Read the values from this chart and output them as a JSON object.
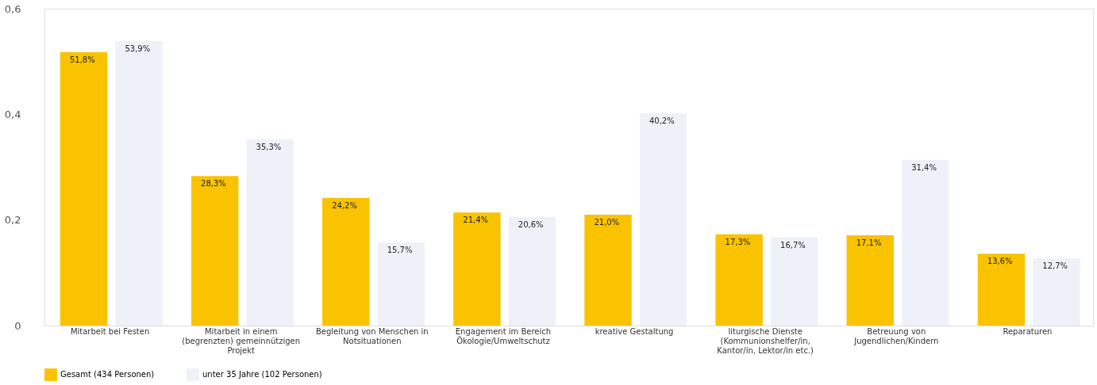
{
  "chart_data": {
    "type": "bar",
    "categories": [
      "Mitarbeit bei Festen",
      "Mitarbeit in einem (begrenzten) gemeinnützigen Projekt",
      "Begleitung von Menschen in Notsituationen",
      "Engagement im Bereich Ökologie/Umweltschutz",
      "kreative Gestaltung",
      "liturgische Dienste (Kommunionshelfer/in, Kantor/in, Lektor/in etc.)",
      "Betreuung von Jugendlichen/Kindern",
      "Reparaturen"
    ],
    "series": [
      {
        "name": "Gesamt (434 Personen)",
        "color": "#f9c300",
        "values": [
          0.518,
          0.283,
          0.242,
          0.214,
          0.21,
          0.173,
          0.171,
          0.136
        ],
        "value_labels": [
          "51,8%",
          "28,3%",
          "24,2%",
          "21,4%",
          "21,0%",
          "17,3%",
          "17,1%",
          "13,6%"
        ]
      },
      {
        "name": "unter 35 Jahre (102 Personen)",
        "color": "#eef2f8",
        "values": [
          0.539,
          0.353,
          0.157,
          0.206,
          0.402,
          0.167,
          0.314,
          0.127
        ],
        "value_labels": [
          "53,9%",
          "35,3%",
          "15,7%",
          "20,6%",
          "40,2%",
          "16,7%",
          "31,4%",
          "12,7%"
        ]
      }
    ],
    "ylim": [
      0,
      0.6
    ],
    "yticks": [
      0,
      {
        "value": 0.2,
        "label": "0,2"
      },
      {
        "value": 0.4,
        "label": "0,4"
      },
      {
        "value": 0.6,
        "label": "0,6"
      }
    ],
    "grid": false,
    "legend": "bottom"
  }
}
